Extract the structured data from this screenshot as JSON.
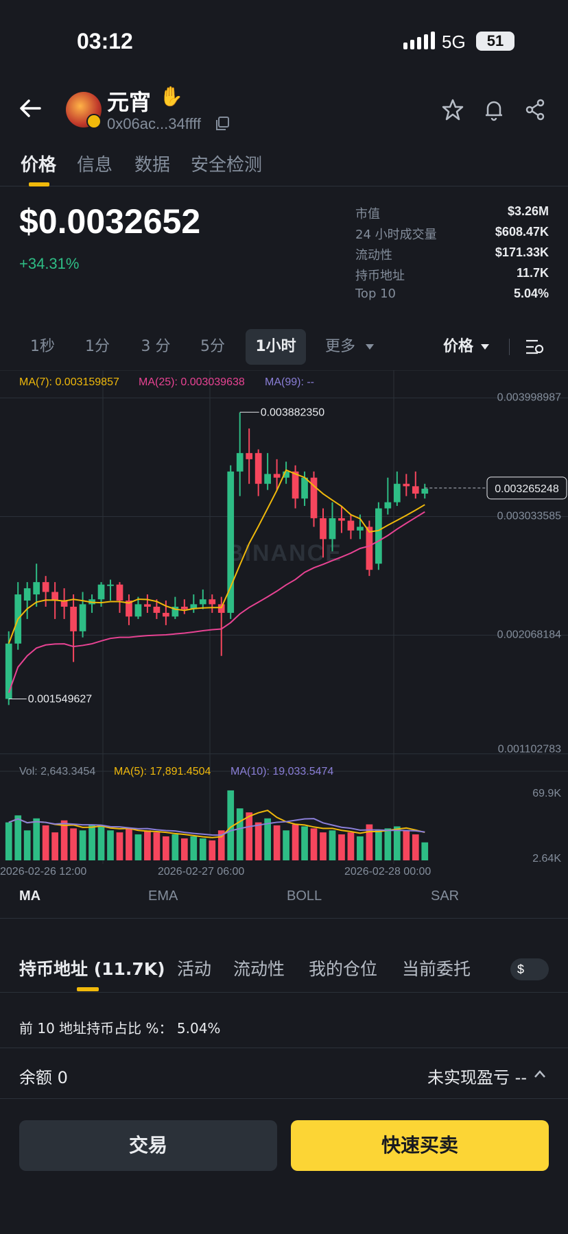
{
  "status": {
    "time": "03:12",
    "network": "5G",
    "battery": "51"
  },
  "token": {
    "name": "元宵",
    "address": "0x06ac...34ffff"
  },
  "tabs": [
    {
      "label": "价格"
    },
    {
      "label": "信息"
    },
    {
      "label": "数据"
    },
    {
      "label": "安全检测"
    }
  ],
  "price": {
    "value": "$0.0032652",
    "change": "+34.31%"
  },
  "stats": [
    {
      "label": "市值",
      "value": "$3.26M"
    },
    {
      "label": "24 小时成交量",
      "value": "$608.47K"
    },
    {
      "label": "流动性",
      "value": "$171.33K"
    },
    {
      "label": "持币地址",
      "value": "11.7K"
    },
    {
      "label": "Top 10",
      "value": "5.04%"
    }
  ],
  "timeframes": [
    {
      "label": "1秒"
    },
    {
      "label": "1分"
    },
    {
      "label": "3 分"
    },
    {
      "label": "5分"
    },
    {
      "label": "1小时"
    },
    {
      "label": "更多"
    }
  ],
  "price_selector": "价格",
  "chart_data": {
    "type": "candlestick",
    "interval": "1小时",
    "ma_legend": {
      "ma7": "MA(7): 0.003159857",
      "ma25": "MA(25): 0.003039638",
      "ma99": "MA(99): --"
    },
    "y_ticks": [
      "0.003998987",
      "0.003033585",
      "0.002068184",
      "0.001102783"
    ],
    "y_range": [
      0.001102783,
      0.003998987
    ],
    "high_marker": "0.003882350",
    "low_marker": "0.001549627",
    "current_price": "0.003265248",
    "watermark": "BINANCE",
    "vol_legend": {
      "vol": "Vol: 2,643.3454",
      "ma5": "MA(5): 17,891.4504",
      "ma10": "MA(10): 19,033.5474"
    },
    "vol_ticks": [
      "69.9K",
      "2.64K"
    ],
    "x_ticks": [
      "2026-02-26 12:00",
      "2026-02-27 06:00",
      "2026-02-28 00:00"
    ],
    "candles": [
      [
        0.00155,
        0.002,
        0.0015,
        0.0021
      ],
      [
        0.002,
        0.0024,
        0.00195,
        0.0025
      ],
      [
        0.00235,
        0.00245,
        0.0022,
        0.0025
      ],
      [
        0.0024,
        0.0025,
        0.0023,
        0.00265
      ],
      [
        0.0025,
        0.00242,
        0.0023,
        0.00255
      ],
      [
        0.00242,
        0.00235,
        0.0022,
        0.0025
      ],
      [
        0.00235,
        0.0023,
        0.0022,
        0.00245
      ],
      [
        0.0023,
        0.0021,
        0.00185,
        0.0024
      ],
      [
        0.0021,
        0.00232,
        0.00205,
        0.00242
      ],
      [
        0.00232,
        0.00236,
        0.00225,
        0.0024
      ],
      [
        0.00236,
        0.00248,
        0.0023,
        0.0025
      ],
      [
        0.00248,
        0.00248,
        0.00235,
        0.00252
      ],
      [
        0.00248,
        0.00235,
        0.00225,
        0.0025
      ],
      [
        0.00235,
        0.00222,
        0.00215,
        0.0024
      ],
      [
        0.00222,
        0.00232,
        0.0022,
        0.00238
      ],
      [
        0.00232,
        0.0023,
        0.00225,
        0.0024
      ],
      [
        0.0023,
        0.00225,
        0.0022,
        0.00236
      ],
      [
        0.00225,
        0.00222,
        0.00215,
        0.00235
      ],
      [
        0.00222,
        0.0023,
        0.0022,
        0.00238
      ],
      [
        0.0023,
        0.00228,
        0.00224,
        0.00236
      ],
      [
        0.00228,
        0.00232,
        0.00225,
        0.0024
      ],
      [
        0.00232,
        0.00236,
        0.00228,
        0.00244
      ],
      [
        0.00236,
        0.00232,
        0.00225,
        0.0024
      ],
      [
        0.00232,
        0.00225,
        0.0019,
        0.00238
      ],
      [
        0.00225,
        0.0034,
        0.0022,
        0.00345
      ],
      [
        0.0034,
        0.00355,
        0.0032,
        0.00388
      ],
      [
        0.00355,
        0.0035,
        0.0033,
        0.00375
      ],
      [
        0.00355,
        0.0033,
        0.0032,
        0.00358
      ],
      [
        0.0033,
        0.00338,
        0.00325,
        0.00355
      ],
      [
        0.00338,
        0.00335,
        0.00325,
        0.0035
      ],
      [
        0.00335,
        0.0034,
        0.0033,
        0.00348
      ],
      [
        0.0034,
        0.00318,
        0.0031,
        0.00345
      ],
      [
        0.00318,
        0.00335,
        0.00312,
        0.0034
      ],
      [
        0.00335,
        0.00302,
        0.00295,
        0.0034
      ],
      [
        0.00302,
        0.00285,
        0.0027,
        0.0031
      ],
      [
        0.00285,
        0.00302,
        0.00275,
        0.00315
      ],
      [
        0.00302,
        0.003,
        0.0029,
        0.00312
      ],
      [
        0.003,
        0.00292,
        0.00285,
        0.00305
      ],
      [
        0.00292,
        0.00295,
        0.00285,
        0.00305
      ],
      [
        0.00295,
        0.0026,
        0.00255,
        0.003
      ],
      [
        0.00265,
        0.0031,
        0.0026,
        0.00315
      ],
      [
        0.0031,
        0.00315,
        0.00305,
        0.00335
      ],
      [
        0.00315,
        0.0033,
        0.00312,
        0.0034
      ],
      [
        0.0033,
        0.00328,
        0.0032,
        0.00338
      ],
      [
        0.00328,
        0.00322,
        0.00318,
        0.0034
      ],
      [
        0.00322,
        0.00326,
        0.00318,
        0.0033
      ]
    ],
    "volume": [
      38,
      45,
      30,
      42,
      35,
      28,
      40,
      32,
      30,
      36,
      34,
      30,
      28,
      32,
      26,
      30,
      28,
      24,
      26,
      22,
      24,
      22,
      20,
      30,
      70,
      52,
      48,
      38,
      42,
      35,
      30,
      36,
      34,
      32,
      28,
      30,
      26,
      28,
      24,
      36,
      30,
      32,
      34,
      30,
      26,
      18
    ]
  },
  "indicators": [
    {
      "label": "MA"
    },
    {
      "label": "EMA"
    },
    {
      "label": "BOLL"
    },
    {
      "label": "SAR"
    }
  ],
  "subtabs": [
    {
      "label": "持币地址 (11.7K)"
    },
    {
      "label": "活动"
    },
    {
      "label": "流动性"
    },
    {
      "label": "我的仓位"
    },
    {
      "label": "当前委托"
    }
  ],
  "currency": "$",
  "holders": {
    "top10_text": "前 10 地址持币占比 %：  5.04%"
  },
  "position": {
    "balance": "余额 0",
    "unrealized": "未实现盈亏 --"
  },
  "actions": {
    "trade": "交易",
    "quick": "快速买卖"
  },
  "colors": {
    "up": "#2ebd85",
    "down": "#f6465d",
    "accent": "#fcd535",
    "ma7": "#f0b90b",
    "ma25": "#e84393",
    "ma99": "#8b7fd8"
  }
}
